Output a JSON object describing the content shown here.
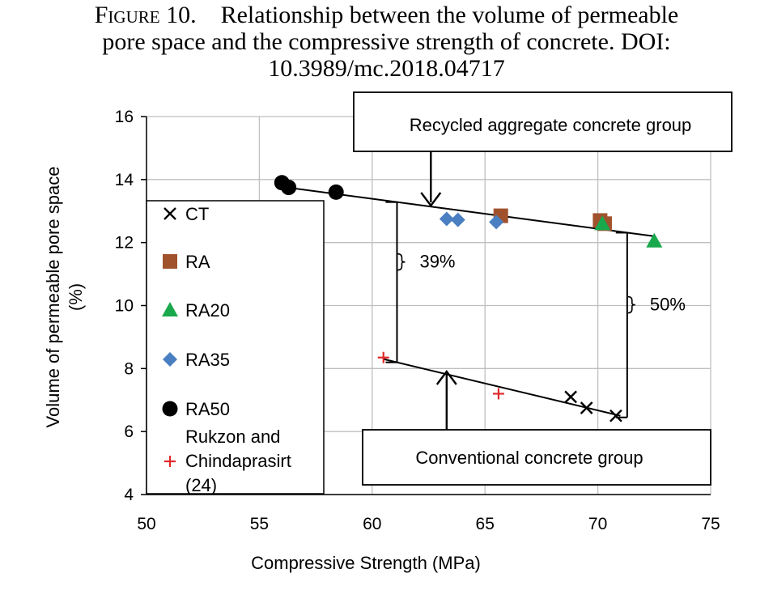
{
  "caption": {
    "figure_label": "Figure 10.",
    "text_line1": "Relationship between the volume of permeable",
    "text_line2": "pore space and the compressive strength of concrete. DOI:",
    "text_line3": "10.3989/mc.2018.04717"
  },
  "chart_data": {
    "type": "scatter",
    "title": "",
    "xlabel": "Compressive Strength (MPa)",
    "ylabel_line1": "Volume of permeable pore space",
    "ylabel_line2": "(%)",
    "xlim": [
      50,
      75
    ],
    "ylim": [
      4,
      16
    ],
    "xticks": [
      50,
      55,
      60,
      65,
      70,
      75
    ],
    "yticks": [
      4,
      6,
      8,
      10,
      12,
      14,
      16
    ],
    "grid": true,
    "legend_position": "left",
    "series": [
      {
        "name": "CT",
        "marker": "x",
        "color": "#000000",
        "points": [
          [
            68.8,
            7.1
          ],
          [
            69.5,
            6.75
          ],
          [
            70.8,
            6.5
          ]
        ]
      },
      {
        "name": "RA",
        "marker": "square",
        "color": "#a0522d",
        "points": [
          [
            65.7,
            12.85
          ],
          [
            70.1,
            12.7
          ],
          [
            70.3,
            12.6
          ]
        ]
      },
      {
        "name": "RA20",
        "marker": "triangle",
        "color": "#1aa84c",
        "points": [
          [
            70.2,
            12.6
          ],
          [
            72.5,
            12.05
          ]
        ]
      },
      {
        "name": "RA35",
        "marker": "diamond",
        "color": "#4a7fc1",
        "points": [
          [
            63.3,
            12.75
          ],
          [
            63.8,
            12.72
          ],
          [
            65.5,
            12.65
          ]
        ]
      },
      {
        "name": "RA50",
        "marker": "circle",
        "color": "#000000",
        "points": [
          [
            56.0,
            13.9
          ],
          [
            56.3,
            13.75
          ],
          [
            58.4,
            13.6
          ]
        ]
      },
      {
        "name": "Rukzon and Chindaprasirt (24)",
        "name_lines": [
          "Rukzon and",
          "Chindaprasirt",
          "(24)"
        ],
        "marker": "plus",
        "color": "#e0282a",
        "points": [
          [
            60.5,
            8.35
          ],
          [
            65.6,
            7.2
          ]
        ]
      }
    ],
    "trendlines": [
      {
        "from": [
          56.2,
          13.75
        ],
        "to": [
          72.5,
          12.2
        ]
      },
      {
        "from": [
          60.5,
          8.3
        ],
        "to": [
          71.0,
          6.5
        ]
      }
    ],
    "annotations": {
      "recycled_box": "Recycled aggregate concrete group",
      "conventional_box": "Conventional concrete group",
      "gap_left": "39%",
      "gap_right": "50%",
      "gap_left_x": 61.1,
      "gap_right_x": 71.3,
      "recycled_arrow_x": 62.6,
      "conventional_arrow_x": 63.3
    }
  }
}
